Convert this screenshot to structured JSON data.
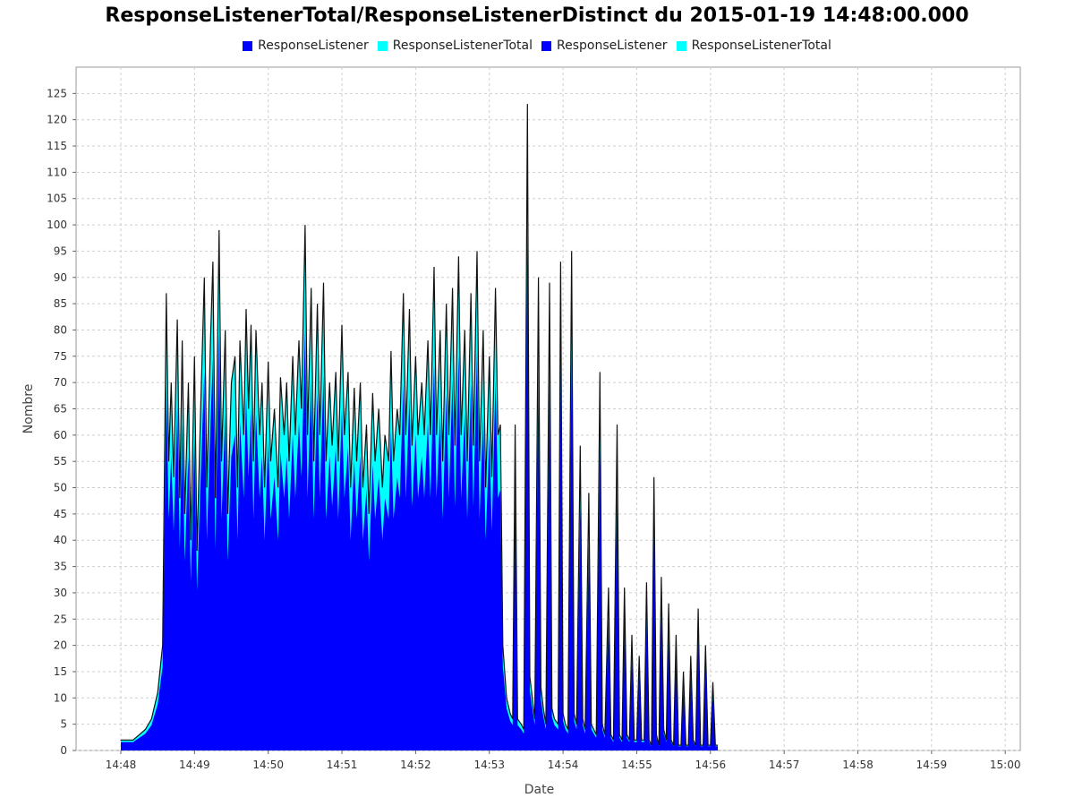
{
  "chart_data": {
    "type": "area",
    "title": "ResponseListenerTotal/ResponseListenerDistinct du 2015-01-19 14:48:00.000",
    "xlabel": "Date",
    "ylabel": "Nombre",
    "ylim": [
      0,
      130
    ],
    "yticks": [
      0,
      5,
      10,
      15,
      20,
      25,
      30,
      35,
      40,
      45,
      50,
      55,
      60,
      65,
      70,
      75,
      80,
      85,
      90,
      95,
      100,
      105,
      110,
      115,
      120,
      125
    ],
    "xticks": [
      "14:48",
      "14:49",
      "14:50",
      "14:51",
      "14:52",
      "14:53",
      "14:54",
      "14:55",
      "14:56",
      "14:57",
      "14:58",
      "14:59",
      "15:00"
    ],
    "grid": true,
    "legend_position": "top",
    "series": [
      {
        "name": "ResponseListener",
        "color": "#0000ff"
      },
      {
        "name": "ResponseListenerTotal",
        "color": "#00ffff"
      },
      {
        "name": "ResponseListener",
        "color": "#0000ff"
      },
      {
        "name": "ResponseListenerTotal",
        "color": "#00ffff"
      }
    ],
    "total_points": [
      [
        "14:48:00",
        2
      ],
      [
        "14:48:05",
        2
      ],
      [
        "14:48:10",
        2
      ],
      [
        "14:48:15",
        3
      ],
      [
        "14:48:20",
        4
      ],
      [
        "14:48:25",
        6
      ],
      [
        "14:48:30",
        11
      ],
      [
        "14:48:34",
        20
      ],
      [
        "14:48:37",
        87
      ],
      [
        "14:48:39",
        55
      ],
      [
        "14:48:41",
        70
      ],
      [
        "14:48:43",
        52
      ],
      [
        "14:48:46",
        82
      ],
      [
        "14:48:48",
        48
      ],
      [
        "14:48:50",
        78
      ],
      [
        "14:48:52",
        45
      ],
      [
        "14:48:55",
        70
      ],
      [
        "14:48:57",
        40
      ],
      [
        "14:49:00",
        75
      ],
      [
        "14:49:02",
        38
      ],
      [
        "14:49:05",
        65
      ],
      [
        "14:49:08",
        90
      ],
      [
        "14:49:10",
        50
      ],
      [
        "14:49:13",
        78
      ],
      [
        "14:49:15",
        93
      ],
      [
        "14:49:17",
        48
      ],
      [
        "14:49:20",
        99
      ],
      [
        "14:49:22",
        55
      ],
      [
        "14:49:25",
        80
      ],
      [
        "14:49:27",
        45
      ],
      [
        "14:49:30",
        70
      ],
      [
        "14:49:33",
        75
      ],
      [
        "14:49:35",
        50
      ],
      [
        "14:49:37",
        78
      ],
      [
        "14:49:40",
        60
      ],
      [
        "14:49:42",
        84
      ],
      [
        "14:49:44",
        65
      ],
      [
        "14:49:46",
        81
      ],
      [
        "14:49:48",
        55
      ],
      [
        "14:49:50",
        80
      ],
      [
        "14:49:53",
        60
      ],
      [
        "14:49:55",
        70
      ],
      [
        "14:49:57",
        50
      ],
      [
        "14:50:00",
        74
      ],
      [
        "14:50:02",
        55
      ],
      [
        "14:50:05",
        65
      ],
      [
        "14:50:08",
        50
      ],
      [
        "14:50:10",
        71
      ],
      [
        "14:50:13",
        60
      ],
      [
        "14:50:15",
        70
      ],
      [
        "14:50:17",
        55
      ],
      [
        "14:50:20",
        75
      ],
      [
        "14:50:22",
        60
      ],
      [
        "14:50:25",
        78
      ],
      [
        "14:50:27",
        65
      ],
      [
        "14:50:30",
        100
      ],
      [
        "14:50:32",
        60
      ],
      [
        "14:50:35",
        88
      ],
      [
        "14:50:37",
        55
      ],
      [
        "14:50:40",
        85
      ],
      [
        "14:50:42",
        60
      ],
      [
        "14:50:45",
        89
      ],
      [
        "14:50:47",
        55
      ],
      [
        "14:50:50",
        70
      ],
      [
        "14:50:52",
        58
      ],
      [
        "14:50:55",
        72
      ],
      [
        "14:50:57",
        55
      ],
      [
        "14:51:00",
        81
      ],
      [
        "14:51:02",
        60
      ],
      [
        "14:51:05",
        72
      ],
      [
        "14:51:07",
        50
      ],
      [
        "14:51:10",
        69
      ],
      [
        "14:51:12",
        55
      ],
      [
        "14:51:15",
        70
      ],
      [
        "14:51:17",
        50
      ],
      [
        "14:51:20",
        62
      ],
      [
        "14:51:22",
        45
      ],
      [
        "14:51:25",
        68
      ],
      [
        "14:51:27",
        55
      ],
      [
        "14:51:30",
        65
      ],
      [
        "14:51:33",
        50
      ],
      [
        "14:51:35",
        60
      ],
      [
        "14:51:38",
        55
      ],
      [
        "14:51:40",
        76
      ],
      [
        "14:51:42",
        55
      ],
      [
        "14:51:45",
        65
      ],
      [
        "14:51:47",
        60
      ],
      [
        "14:51:50",
        87
      ],
      [
        "14:51:52",
        60
      ],
      [
        "14:51:55",
        84
      ],
      [
        "14:51:57",
        58
      ],
      [
        "14:52:00",
        75
      ],
      [
        "14:52:02",
        60
      ],
      [
        "14:52:05",
        70
      ],
      [
        "14:52:07",
        60
      ],
      [
        "14:52:10",
        78
      ],
      [
        "14:52:12",
        60
      ],
      [
        "14:52:15",
        92
      ],
      [
        "14:52:17",
        60
      ],
      [
        "14:52:20",
        80
      ],
      [
        "14:52:22",
        55
      ],
      [
        "14:52:25",
        85
      ],
      [
        "14:52:27",
        60
      ],
      [
        "14:52:30",
        88
      ],
      [
        "14:52:32",
        58
      ],
      [
        "14:52:35",
        94
      ],
      [
        "14:52:37",
        60
      ],
      [
        "14:52:40",
        80
      ],
      [
        "14:52:42",
        55
      ],
      [
        "14:52:45",
        87
      ],
      [
        "14:52:47",
        58
      ],
      [
        "14:52:50",
        95
      ],
      [
        "14:52:52",
        55
      ],
      [
        "14:52:55",
        80
      ],
      [
        "14:52:57",
        50
      ],
      [
        "14:53:00",
        75
      ],
      [
        "14:53:02",
        52
      ],
      [
        "14:53:05",
        88
      ],
      [
        "14:53:07",
        60
      ],
      [
        "14:53:09",
        62
      ],
      [
        "14:53:11",
        20
      ],
      [
        "14:53:14",
        10
      ],
      [
        "14:53:17",
        7
      ],
      [
        "14:53:19",
        6
      ],
      [
        "14:53:21",
        62
      ],
      [
        "14:53:23",
        6
      ],
      [
        "14:53:26",
        5
      ],
      [
        "14:53:28",
        4
      ],
      [
        "14:53:31",
        123
      ],
      [
        "14:53:33",
        14
      ],
      [
        "14:53:35",
        10
      ],
      [
        "14:53:37",
        6
      ],
      [
        "14:53:40",
        90
      ],
      [
        "14:53:42",
        12
      ],
      [
        "14:53:44",
        8
      ],
      [
        "14:53:46",
        5
      ],
      [
        "14:53:49",
        89
      ],
      [
        "14:53:51",
        8
      ],
      [
        "14:53:53",
        6
      ],
      [
        "14:53:56",
        5
      ],
      [
        "14:53:58",
        93
      ],
      [
        "14:54:00",
        7
      ],
      [
        "14:54:02",
        5
      ],
      [
        "14:54:04",
        4
      ],
      [
        "14:54:07",
        95
      ],
      [
        "14:54:09",
        7
      ],
      [
        "14:54:11",
        5
      ],
      [
        "14:54:14",
        58
      ],
      [
        "14:54:16",
        6
      ],
      [
        "14:54:18",
        4
      ],
      [
        "14:54:21",
        49
      ],
      [
        "14:54:23",
        5
      ],
      [
        "14:54:25",
        4
      ],
      [
        "14:54:27",
        3
      ],
      [
        "14:54:30",
        72
      ],
      [
        "14:54:32",
        5
      ],
      [
        "14:54:34",
        3
      ],
      [
        "14:54:37",
        31
      ],
      [
        "14:54:39",
        3
      ],
      [
        "14:54:41",
        2
      ],
      [
        "14:54:44",
        62
      ],
      [
        "14:54:46",
        3
      ],
      [
        "14:54:48",
        2
      ],
      [
        "14:54:50",
        31
      ],
      [
        "14:54:52",
        3
      ],
      [
        "14:54:54",
        2
      ],
      [
        "14:54:56",
        22
      ],
      [
        "14:54:58",
        2
      ],
      [
        "14:55:00",
        2
      ],
      [
        "14:55:02",
        18
      ],
      [
        "14:55:04",
        2
      ],
      [
        "14:55:06",
        2
      ],
      [
        "14:55:08",
        32
      ],
      [
        "14:55:10",
        2
      ],
      [
        "14:55:12",
        1
      ],
      [
        "14:55:14",
        52
      ],
      [
        "14:55:16",
        3
      ],
      [
        "14:55:18",
        1
      ],
      [
        "14:55:20",
        33
      ],
      [
        "14:55:22",
        4
      ],
      [
        "14:55:24",
        2
      ],
      [
        "14:55:26",
        28
      ],
      [
        "14:55:28",
        2
      ],
      [
        "14:55:30",
        1
      ],
      [
        "14:55:32",
        22
      ],
      [
        "14:55:34",
        1
      ],
      [
        "14:55:36",
        1
      ],
      [
        "14:55:38",
        15
      ],
      [
        "14:55:40",
        1
      ],
      [
        "14:55:42",
        1
      ],
      [
        "14:55:44",
        18
      ],
      [
        "14:55:46",
        2
      ],
      [
        "14:55:48",
        1
      ],
      [
        "14:55:50",
        27
      ],
      [
        "14:55:52",
        1
      ],
      [
        "14:55:54",
        1
      ],
      [
        "14:55:56",
        20
      ],
      [
        "14:55:58",
        1
      ],
      [
        "14:56:00",
        1
      ],
      [
        "14:56:02",
        13
      ],
      [
        "14:56:04",
        1
      ],
      [
        "14:56:06",
        1
      ]
    ]
  }
}
